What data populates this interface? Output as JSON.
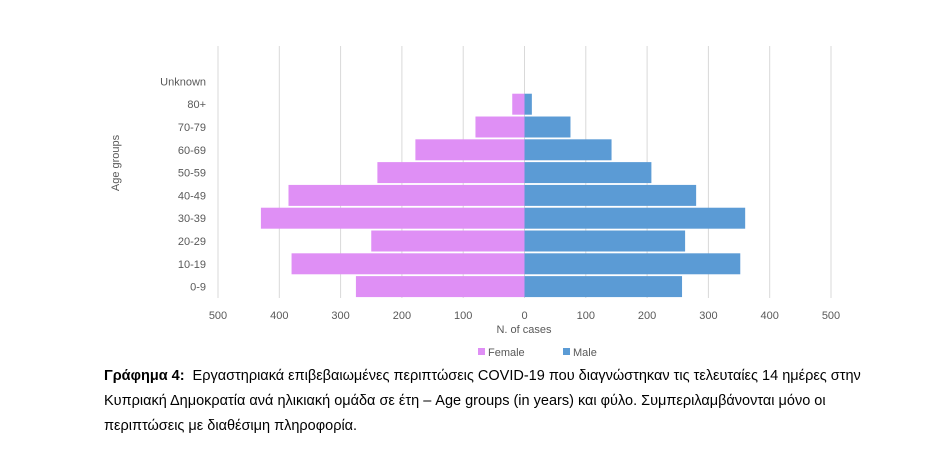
{
  "chart_data": {
    "type": "bar",
    "orientation": "horizontal-population-pyramid",
    "categories": [
      "0-9",
      "10-19",
      "20-29",
      "30-39",
      "40-49",
      "50-59",
      "60-69",
      "70-79",
      "80+",
      "Unknown"
    ],
    "series": [
      {
        "name": "Female",
        "values": [
          275,
          380,
          250,
          430,
          385,
          240,
          178,
          80,
          20,
          0
        ],
        "color": "#df8ff5",
        "direction": "left"
      },
      {
        "name": "Male",
        "values": [
          257,
          352,
          262,
          360,
          280,
          207,
          142,
          75,
          12,
          0
        ],
        "color": "#5b9bd5",
        "direction": "right"
      }
    ],
    "xlabel": "N. of cases",
    "ylabel": "Age groups",
    "xlim": [
      -500,
      500
    ],
    "xticks": [
      -500,
      -400,
      -300,
      -200,
      -100,
      0,
      100,
      200,
      300,
      400,
      500
    ],
    "xtick_labels": [
      "500",
      "400",
      "300",
      "200",
      "100",
      "0",
      "100",
      "200",
      "300",
      "400",
      "500"
    ],
    "grid": "vertical",
    "legend_position": "bottom"
  },
  "caption": {
    "label": "Γράφημα 4:",
    "text": "Εργαστηριακά επιβεβαιωμένες περιπτώσεις COVID-19 που διαγνώστηκαν τις τελευταίες 14 ημέρες στην Κυπριακή Δημοκρατία ανά ηλικιακή ομάδα σε έτη – Age groups (in years) και φύλο. Συμπεριλαμβάνονται μόνο οι περιπτώσεις με διαθέσιμη πληροφορία."
  }
}
